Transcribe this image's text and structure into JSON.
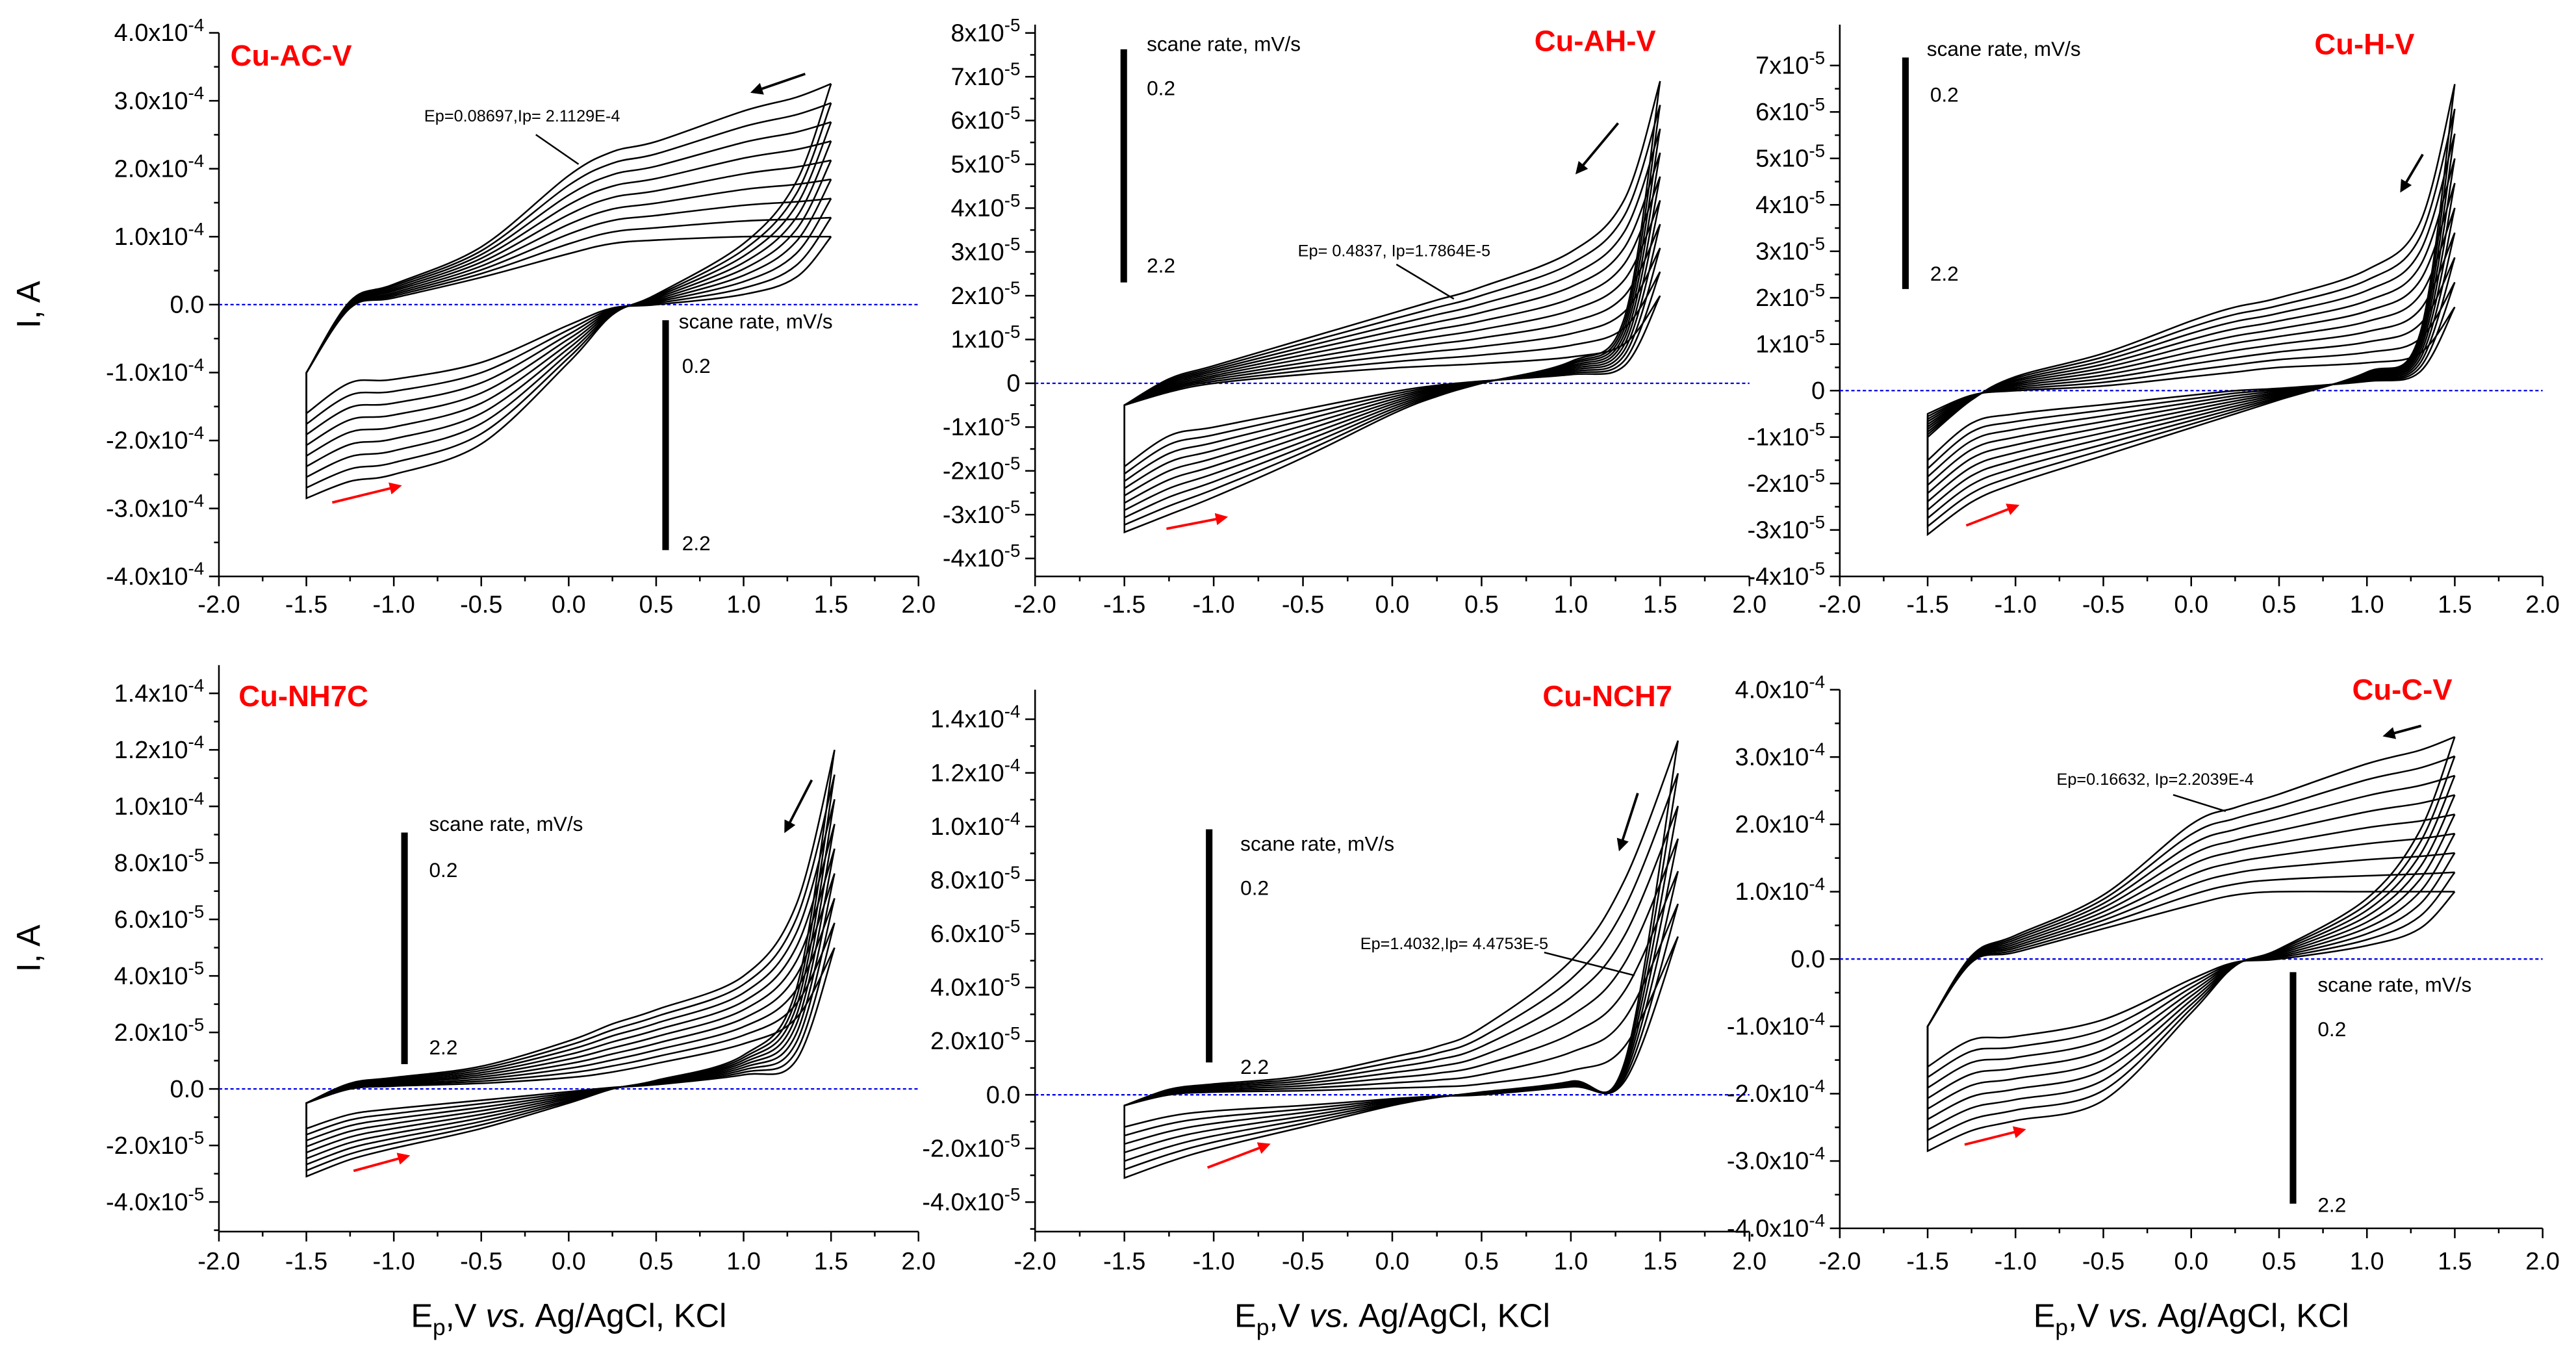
{
  "chart_data": [
    {
      "type": "line",
      "title": "Cu-AC-V",
      "unit_scale": 0.0001,
      "xlim": [
        -2.0,
        2.0
      ],
      "ylim": [
        -4.0,
        4.0
      ],
      "xticks": [
        "-2.0",
        "-1.5",
        "-1.0",
        "-0.5",
        "0.0",
        "0.5",
        "1.0",
        "1.5",
        "2.0"
      ],
      "yticks": [
        {
          "v": 4,
          "m": "4.0x10",
          "e": "-4"
        },
        {
          "v": 3,
          "m": "3.0x10",
          "e": "-4"
        },
        {
          "v": 2,
          "m": "2.0x10",
          "e": "-4"
        },
        {
          "v": 1,
          "m": "1.0x10",
          "e": "-4"
        },
        {
          "v": 0,
          "m": "0.0",
          "e": ""
        },
        {
          "v": -1,
          "m": "-1.0x10",
          "e": "-4"
        },
        {
          "v": -2,
          "m": "-2.0x10",
          "e": "-4"
        },
        {
          "v": -3,
          "m": "-3.0x10",
          "e": "-4"
        },
        {
          "v": -4,
          "m": "-4.0x10",
          "e": "-4"
        }
      ],
      "ylabel": "I, A",
      "xlabel": "",
      "legend": {
        "title": "scane rate, mV/s",
        "min": "0.2",
        "max": "2.2"
      },
      "annotation": {
        "text": "Ep=0.08697,Ip= 2.1129E-4"
      },
      "n_curves": 9,
      "E": [
        -1.5,
        -1.25,
        -1.0,
        -0.5,
        0.0,
        0.25,
        0.5,
        1.0,
        1.3,
        1.5
      ],
      "outer": {
        "reverse": [
          -1.0,
          0.05,
          0.3,
          0.85,
          1.9,
          2.25,
          2.4,
          2.85,
          3.05,
          3.25
        ],
        "forward": [
          -2.85,
          -2.6,
          -2.5,
          -2.05,
          -0.85,
          -0.15,
          0.15,
          0.9,
          1.8,
          3.25
        ]
      },
      "inner": {
        "reverse": [
          -1.0,
          -0.05,
          0.1,
          0.4,
          0.75,
          0.9,
          0.95,
          1.0,
          1.0,
          1.0
        ],
        "forward": [
          -1.6,
          -1.15,
          -1.1,
          -0.85,
          -0.3,
          -0.05,
          0.0,
          0.15,
          0.4,
          1.0
        ]
      }
    },
    {
      "type": "line",
      "title": "Cu-AH-V",
      "unit_scale": 1e-05,
      "xlim": [
        -2.0,
        2.0
      ],
      "ylim": [
        -4.41,
        8.19
      ],
      "xticks": [
        "-2.0",
        "-1.5",
        "-1.0",
        "-0.5",
        "0.0",
        "0.5",
        "1.0",
        "1.5",
        "2.0"
      ],
      "yticks": [
        {
          "v": 8,
          "m": "8x10",
          "e": "-5"
        },
        {
          "v": 7,
          "m": "7x10",
          "e": "-5"
        },
        {
          "v": 6,
          "m": "6x10",
          "e": "-5"
        },
        {
          "v": 5,
          "m": "5x10",
          "e": "-5"
        },
        {
          "v": 4,
          "m": "4x10",
          "e": "-5"
        },
        {
          "v": 3,
          "m": "3x10",
          "e": "-5"
        },
        {
          "v": 2,
          "m": "2x10",
          "e": "-5"
        },
        {
          "v": 1,
          "m": "1x10",
          "e": "-5"
        },
        {
          "v": 0,
          "m": "0",
          "e": ""
        },
        {
          "v": -1,
          "m": "-1x10",
          "e": "-5"
        },
        {
          "v": -2,
          "m": "-2x10",
          "e": "-5"
        },
        {
          "v": -3,
          "m": "-3x10",
          "e": "-5"
        },
        {
          "v": -4,
          "m": "-4x10",
          "e": "-5"
        }
      ],
      "ylabel": "",
      "xlabel": "",
      "legend": {
        "title": "scane rate, mV/s",
        "min": "0.2",
        "max": "2.2"
      },
      "annotation": {
        "text": "Ep= 0.4837, Ip=1.7864E-5"
      },
      "n_curves": 10,
      "E": [
        -1.5,
        -1.25,
        -1.0,
        -0.5,
        0.0,
        0.25,
        0.5,
        1.0,
        1.3,
        1.5
      ],
      "outer": {
        "reverse": [
          -0.5,
          0.1,
          0.4,
          1.0,
          1.6,
          1.9,
          2.2,
          3.0,
          4.2,
          6.9
        ],
        "forward": [
          -3.4,
          -3.0,
          -2.6,
          -1.7,
          -0.7,
          -0.3,
          0.0,
          0.5,
          1.5,
          6.9
        ]
      },
      "inner": {
        "reverse": [
          -0.5,
          -0.2,
          0.0,
          0.2,
          0.35,
          0.4,
          0.45,
          0.6,
          0.9,
          2.0
        ],
        "forward": [
          -1.9,
          -1.2,
          -1.0,
          -0.6,
          -0.2,
          -0.05,
          0.05,
          0.2,
          0.4,
          2.0
        ]
      }
    },
    {
      "type": "line",
      "title": "Cu-H-V",
      "unit_scale": 1e-05,
      "xlim": [
        -2.0,
        2.0
      ],
      "ylim": [
        -4.0,
        7.88
      ],
      "xticks": [
        "-2.0",
        "-1.5",
        "-1.0",
        "-0.5",
        "0.0",
        "0.5",
        "1.0",
        "1.5",
        "2.0"
      ],
      "yticks": [
        {
          "v": 7,
          "m": "7x10",
          "e": "-5"
        },
        {
          "v": 6,
          "m": "6x10",
          "e": "-5"
        },
        {
          "v": 5,
          "m": "5x10",
          "e": "-5"
        },
        {
          "v": 4,
          "m": "4x10",
          "e": "-5"
        },
        {
          "v": 3,
          "m": "3x10",
          "e": "-5"
        },
        {
          "v": 2,
          "m": "2x10",
          "e": "-5"
        },
        {
          "v": 1,
          "m": "1x10",
          "e": "-5"
        },
        {
          "v": 0,
          "m": "0",
          "e": ""
        },
        {
          "v": -1,
          "m": "-1x10",
          "e": "-5"
        },
        {
          "v": -2,
          "m": "-2x10",
          "e": "-5"
        },
        {
          "v": -3,
          "m": "-3x10",
          "e": "-5"
        },
        {
          "v": -4,
          "m": "-4x10",
          "e": "-5"
        }
      ],
      "ylabel": "",
      "xlabel": "",
      "legend": {
        "title": "scane rate, mV/s",
        "min": "0.2",
        "max": "2.2"
      },
      "annotation": null,
      "n_curves": 10,
      "E": [
        -1.5,
        -1.25,
        -1.0,
        -0.5,
        0.0,
        0.25,
        0.5,
        1.0,
        1.3,
        1.5
      ],
      "outer": {
        "reverse": [
          -1.0,
          -0.2,
          0.3,
          0.8,
          1.5,
          1.8,
          2.0,
          2.6,
          3.6,
          6.6
        ],
        "forward": [
          -3.1,
          -2.4,
          -2.0,
          -1.4,
          -0.8,
          -0.5,
          -0.2,
          0.4,
          1.2,
          6.6
        ]
      },
      "inner": {
        "reverse": [
          -0.5,
          -0.1,
          0.0,
          0.1,
          0.3,
          0.4,
          0.5,
          0.6,
          0.8,
          1.8
        ],
        "forward": [
          -1.5,
          -0.7,
          -0.5,
          -0.3,
          -0.1,
          0.0,
          0.05,
          0.2,
          0.4,
          1.8
        ]
      }
    },
    {
      "type": "line",
      "title": "Cu-NH7C",
      "unit_scale": 1e-05,
      "xlim": [
        -2.0,
        2.0
      ],
      "ylim": [
        -5.05,
        15.0
      ],
      "xticks": [
        "-2.0",
        "-1.5",
        "-1.0",
        "-0.5",
        "0.0",
        "0.5",
        "1.0",
        "1.5",
        "2.0"
      ],
      "yticks": [
        {
          "v": 14,
          "m": "1.4x10",
          "e": "-4"
        },
        {
          "v": 12,
          "m": "1.2x10",
          "e": "-4"
        },
        {
          "v": 10,
          "m": "1.0x10",
          "e": "-4"
        },
        {
          "v": 8,
          "m": "8.0x10",
          "e": "-5"
        },
        {
          "v": 6,
          "m": "6.0x10",
          "e": "-5"
        },
        {
          "v": 4,
          "m": "4.0x10",
          "e": "-5"
        },
        {
          "v": 2,
          "m": "2.0x10",
          "e": "-5"
        },
        {
          "v": 0,
          "m": "0.0",
          "e": ""
        },
        {
          "v": -2,
          "m": "-2.0x10",
          "e": "-5"
        },
        {
          "v": -4,
          "m": "-4.0x10",
          "e": "-5"
        }
      ],
      "ylabel": "I, A",
      "xlabel": "Ep,V vs. Ag/AgCl, KCl",
      "legend": {
        "title": "scane rate, mV/s",
        "min": "0.2",
        "max": "2.2"
      },
      "annotation": null,
      "n_curves": 9,
      "E": [
        -1.5,
        -1.25,
        -1.0,
        -0.5,
        0.0,
        0.25,
        0.5,
        1.0,
        1.3,
        1.52
      ],
      "outer": {
        "reverse": [
          -0.5,
          0.2,
          0.4,
          0.8,
          1.7,
          2.3,
          2.8,
          4.0,
          6.5,
          12.0
        ],
        "forward": [
          -3.1,
          -2.5,
          -2.1,
          -1.4,
          -0.5,
          0.0,
          0.3,
          1.2,
          3.5,
          12.0
        ]
      },
      "inner": {
        "reverse": [
          -0.5,
          0.0,
          0.1,
          0.2,
          0.4,
          0.6,
          0.9,
          1.6,
          2.5,
          5.0
        ],
        "forward": [
          -1.4,
          -0.9,
          -0.7,
          -0.4,
          -0.1,
          0.05,
          0.15,
          0.5,
          1.0,
          5.0
        ]
      }
    },
    {
      "type": "line",
      "title": "Cu-NCH7",
      "unit_scale": 1e-05,
      "xlim": [
        -2.0,
        2.0
      ],
      "ylim": [
        -5.1,
        15.1
      ],
      "xticks": [
        "-2.0",
        "-1.5",
        "-1.0",
        "-0.5",
        "0.0",
        "0.5",
        "1.0",
        "1.5",
        "2.0"
      ],
      "yticks": [
        {
          "v": 14,
          "m": "1.4x10",
          "e": "-4"
        },
        {
          "v": 12,
          "m": "1.2x10",
          "e": "-4"
        },
        {
          "v": 10,
          "m": "1.0x10",
          "e": "-4"
        },
        {
          "v": 8,
          "m": "8.0x10",
          "e": "-5"
        },
        {
          "v": 6,
          "m": "6.0x10",
          "e": "-5"
        },
        {
          "v": 4,
          "m": "4.0x10",
          "e": "-5"
        },
        {
          "v": 2,
          "m": "2.0x10",
          "e": "-5"
        },
        {
          "v": 0,
          "m": "0.0",
          "e": ""
        },
        {
          "v": -2,
          "m": "-2.0x10",
          "e": "-5"
        },
        {
          "v": -4,
          "m": "-4.0x10",
          "e": "-5"
        }
      ],
      "ylabel": "",
      "xlabel": "Ep,V vs. Ag/AgCl, KCl",
      "legend": {
        "title": "scane rate, mV/s",
        "min": "0.2",
        "max": "2.2"
      },
      "annotation": {
        "text": "Ep=1.4032,Ip= 4.4753E-5"
      },
      "n_curves": 7,
      "E": [
        -1.5,
        -1.25,
        -1.0,
        -0.5,
        0.0,
        0.25,
        0.5,
        1.0,
        1.3,
        1.6
      ],
      "outer": {
        "reverse": [
          -0.4,
          0.2,
          0.4,
          0.7,
          1.4,
          1.8,
          2.5,
          5.0,
          8.0,
          13.2
        ],
        "forward": [
          -3.1,
          -2.5,
          -2.0,
          -1.2,
          -0.4,
          -0.1,
          0.1,
          0.5,
          1.2,
          13.2
        ]
      },
      "inner": {
        "reverse": [
          -0.4,
          0.0,
          0.1,
          0.15,
          0.25,
          0.3,
          0.4,
          0.9,
          1.8,
          5.9
        ],
        "forward": [
          -1.2,
          -0.8,
          -0.6,
          -0.4,
          -0.15,
          -0.05,
          0.0,
          0.3,
          0.5,
          5.9
        ]
      }
    },
    {
      "type": "line",
      "title": "Cu-C-V",
      "unit_scale": 0.0001,
      "xlim": [
        -2.0,
        2.0
      ],
      "ylim": [
        -4.0,
        4.0
      ],
      "xticks": [
        "-2.0",
        "-1.5",
        "-1.0",
        "-0.5",
        "0.0",
        "0.5",
        "1.0",
        "1.5",
        "2.0"
      ],
      "yticks": [
        {
          "v": 4,
          "m": "4.0x10",
          "e": "-4"
        },
        {
          "v": 3,
          "m": "3.0x10",
          "e": "-4"
        },
        {
          "v": 2,
          "m": "2.0x10",
          "e": "-4"
        },
        {
          "v": 1,
          "m": "1.0x10",
          "e": "-4"
        },
        {
          "v": 0,
          "m": "0.0",
          "e": ""
        },
        {
          "v": -1,
          "m": "-1.0x10",
          "e": "-4"
        },
        {
          "v": -2,
          "m": "-2.0x10",
          "e": "-4"
        },
        {
          "v": -3,
          "m": "-3.0x10",
          "e": "-4"
        },
        {
          "v": -4,
          "m": "-4.0x10",
          "e": "-4"
        }
      ],
      "ylabel": "",
      "xlabel": "Ep,V vs. Ag/AgCl, KCl",
      "legend": {
        "title": "scane rate, mV/s",
        "min": "0.2",
        "max": "2.2"
      },
      "annotation": {
        "text": "Ep=0.16632, Ip=2.2039E-4"
      },
      "n_curves": 9,
      "E": [
        -1.5,
        -1.25,
        -1.0,
        -0.5,
        0.0,
        0.25,
        0.5,
        1.0,
        1.3,
        1.5
      ],
      "outer": {
        "reverse": [
          -1.0,
          0.05,
          0.35,
          0.95,
          2.0,
          2.25,
          2.45,
          2.9,
          3.1,
          3.3
        ],
        "forward": [
          -2.85,
          -2.55,
          -2.4,
          -2.1,
          -0.8,
          -0.1,
          0.15,
          0.9,
          1.9,
          3.3
        ]
      },
      "inner": {
        "reverse": [
          -1.0,
          -0.05,
          0.1,
          0.45,
          0.8,
          0.95,
          1.0,
          1.0,
          1.0,
          1.0
        ],
        "forward": [
          -1.6,
          -1.2,
          -1.15,
          -0.9,
          -0.3,
          -0.05,
          0.0,
          0.2,
          0.45,
          1.0
        ]
      }
    }
  ]
}
